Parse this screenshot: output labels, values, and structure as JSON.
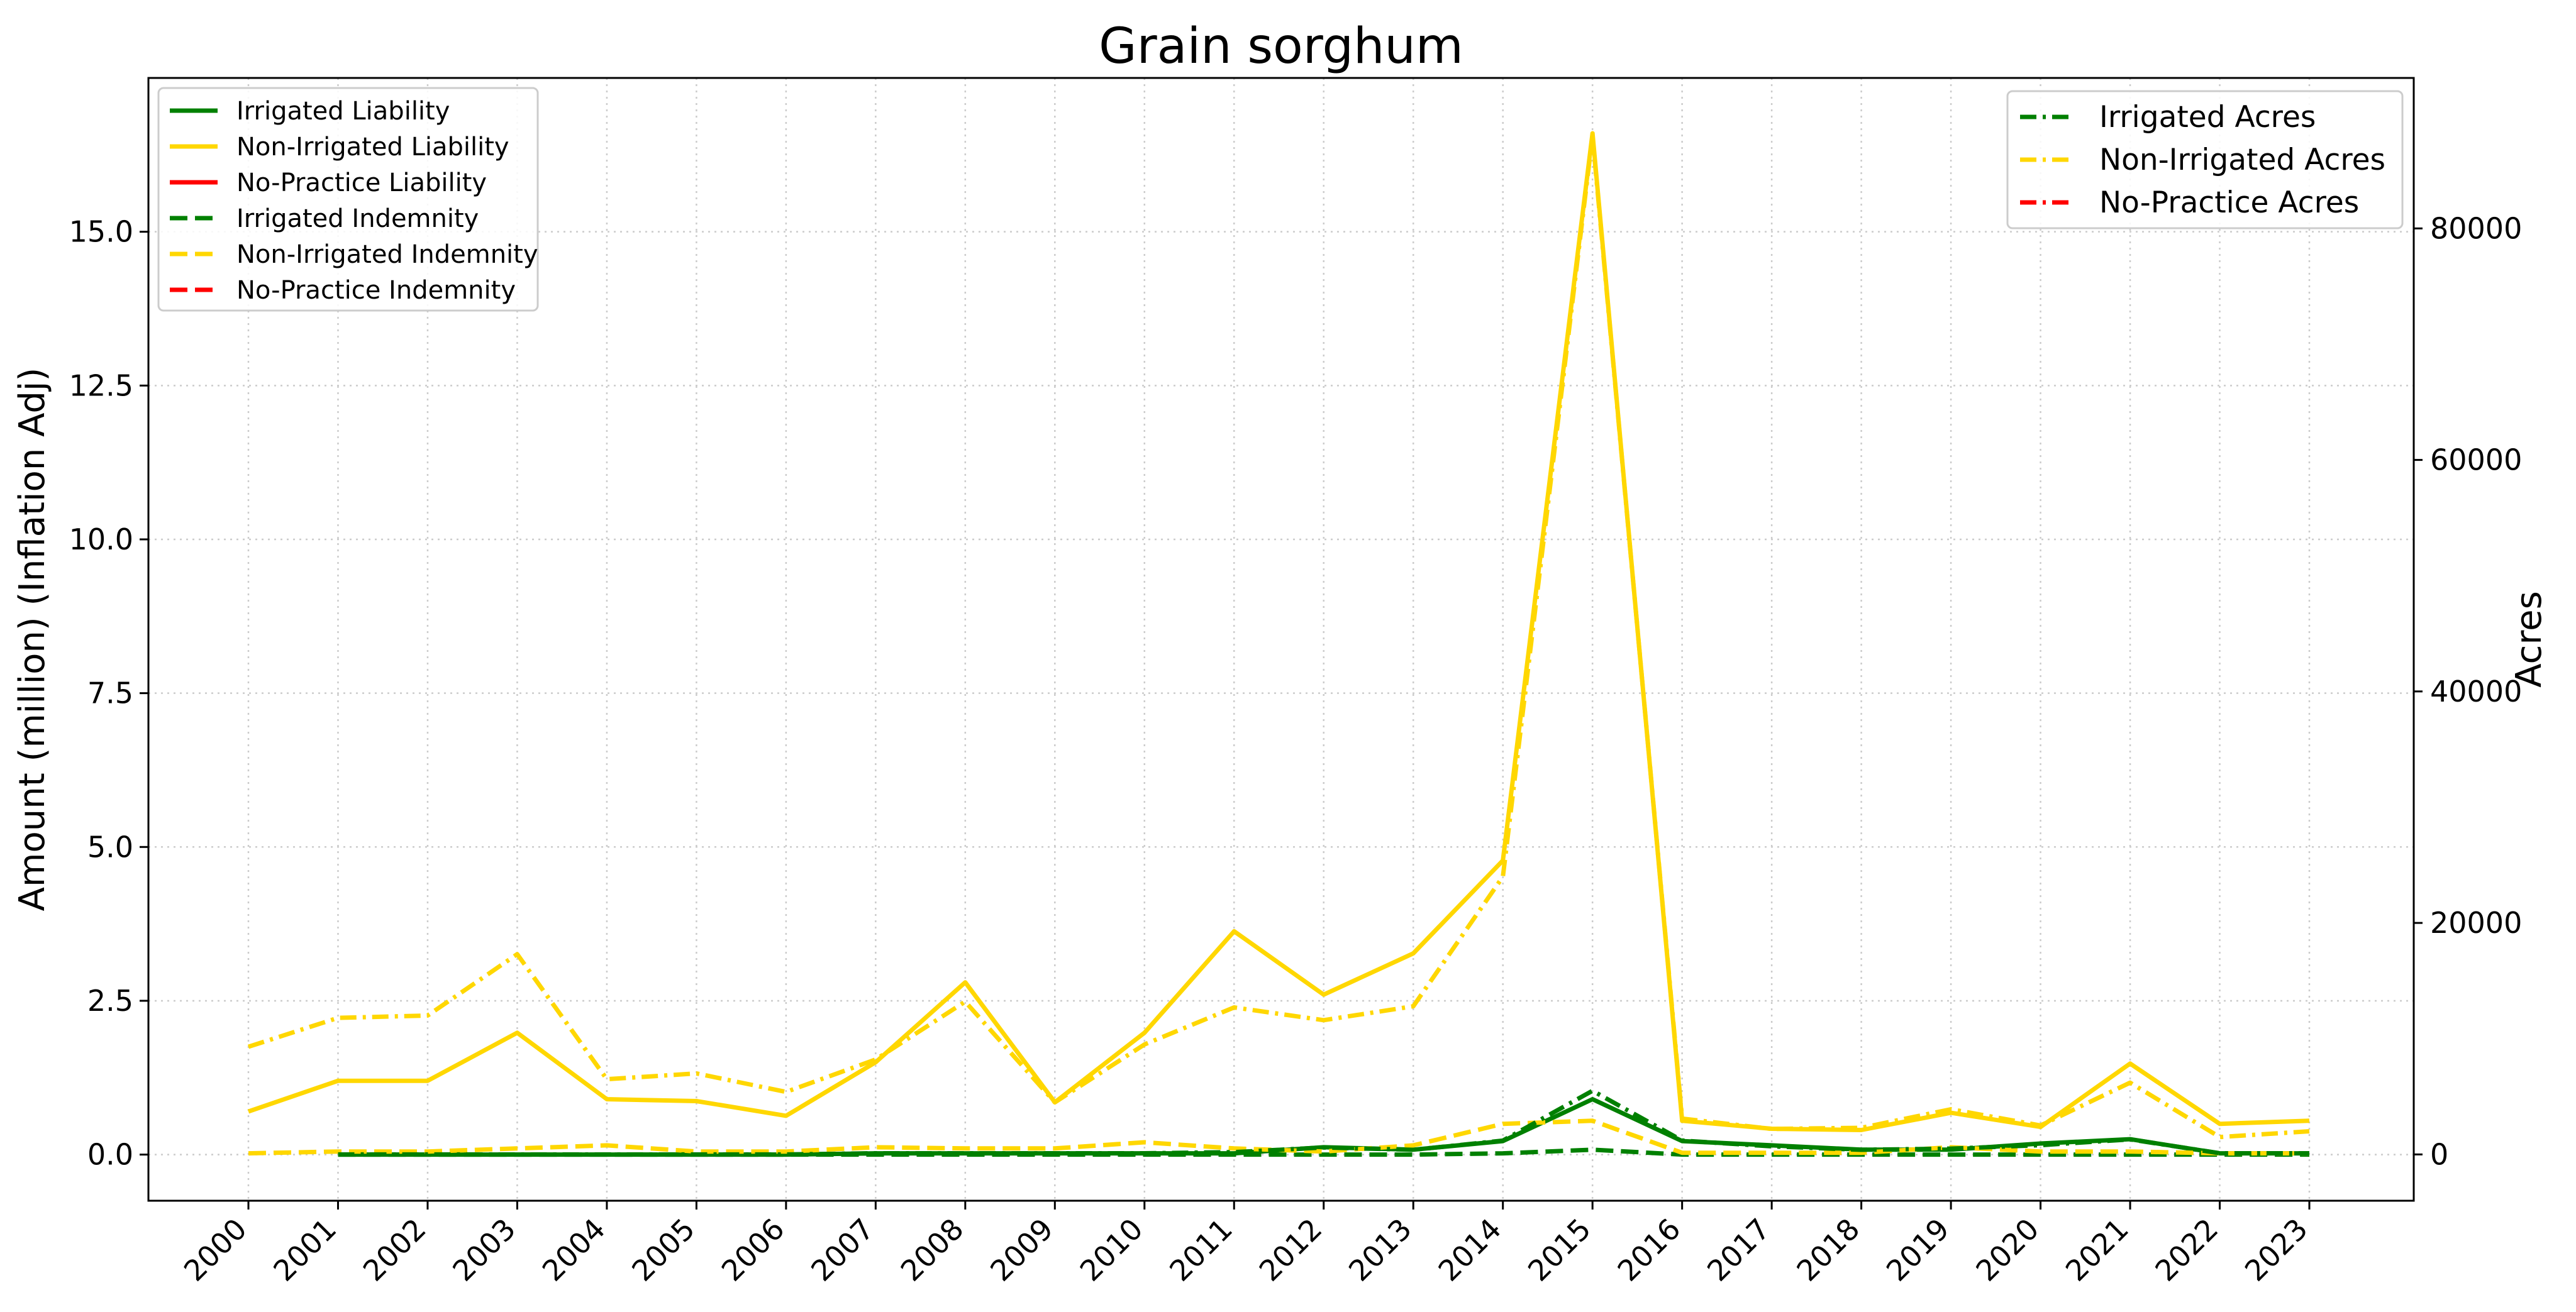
{
  "chart_data": {
    "type": "line",
    "title": "Grain sorghum",
    "ylabel_left": "Amount (million) (Inflation Adj)",
    "ylabel_right": "Acres",
    "xlabel": "",
    "x": [
      2000,
      2001,
      2002,
      2003,
      2004,
      2005,
      2006,
      2007,
      2008,
      2009,
      2010,
      2011,
      2012,
      2013,
      2014,
      2015,
      2016,
      2017,
      2018,
      2019,
      2020,
      2021,
      2022,
      2023
    ],
    "ylim_left": [
      -0.75,
      17.5
    ],
    "ylim_right": [
      -4000,
      93000
    ],
    "yticks_left": [
      "0.0",
      "2.5",
      "5.0",
      "7.5",
      "10.0",
      "12.5",
      "15.0"
    ],
    "yticks_right": [
      "0",
      "20000",
      "40000",
      "60000",
      "80000"
    ],
    "grid": true,
    "legend_left_position": "upper-left",
    "legend_right_position": "upper-right",
    "series_left": [
      {
        "name": "Irrigated Liability",
        "color": "#008000",
        "style": "solid",
        "x": [
          2001,
          2002,
          2003,
          2004,
          2005,
          2006,
          2007,
          2008,
          2009,
          2010,
          2011,
          2012,
          2013,
          2014,
          2015,
          2016,
          2017,
          2018,
          2019,
          2020,
          2021,
          2022,
          2023
        ],
        "values": [
          0.0,
          0.0,
          0.0,
          0.0,
          0.0,
          0.0,
          0.02,
          0.02,
          0.02,
          0.02,
          0.02,
          0.12,
          0.08,
          0.22,
          0.9,
          0.22,
          0.15,
          0.08,
          0.08,
          0.18,
          0.25,
          0.02,
          0.02
        ]
      },
      {
        "name": "Non-Irrigated Liability",
        "color": "#FFD700",
        "style": "solid",
        "x": [
          2000,
          2001,
          2002,
          2003,
          2004,
          2005,
          2006,
          2007,
          2008,
          2009,
          2010,
          2011,
          2012,
          2013,
          2014,
          2015,
          2016,
          2017,
          2018,
          2019,
          2020,
          2021,
          2022,
          2023
        ],
        "values": [
          0.7,
          1.2,
          1.2,
          1.98,
          0.9,
          0.87,
          0.63,
          1.5,
          2.8,
          0.85,
          1.98,
          3.63,
          2.6,
          3.27,
          4.78,
          16.6,
          0.55,
          0.42,
          0.4,
          0.68,
          0.45,
          1.48,
          0.5,
          0.55
        ]
      },
      {
        "name": "No-Practice Liability",
        "color": "#FF0000",
        "style": "solid",
        "x": [],
        "values": []
      },
      {
        "name": "Irrigated Indemnity",
        "color": "#008000",
        "style": "dashed",
        "x": [
          2001,
          2002,
          2003,
          2004,
          2005,
          2006,
          2007,
          2008,
          2009,
          2010,
          2011,
          2012,
          2013,
          2014,
          2015,
          2016,
          2017,
          2018,
          2019,
          2020,
          2021,
          2022,
          2023
        ],
        "values": [
          0.0,
          0.0,
          0.0,
          0.0,
          0.0,
          0.0,
          0.0,
          0.0,
          0.0,
          0.0,
          0.0,
          0.0,
          0.0,
          0.02,
          0.08,
          0.0,
          0.0,
          0.0,
          0.0,
          0.0,
          0.0,
          0.0,
          0.0
        ]
      },
      {
        "name": "Non-Irrigated Indemnity",
        "color": "#FFD700",
        "style": "dashed",
        "x": [
          2000,
          2001,
          2002,
          2003,
          2004,
          2005,
          2006,
          2007,
          2008,
          2009,
          2010,
          2011,
          2012,
          2013,
          2014,
          2015,
          2016,
          2017,
          2018,
          2019,
          2020,
          2021,
          2022,
          2023
        ],
        "values": [
          0.02,
          0.05,
          0.05,
          0.1,
          0.15,
          0.05,
          0.05,
          0.12,
          0.1,
          0.1,
          0.2,
          0.1,
          0.05,
          0.15,
          0.5,
          0.55,
          0.03,
          0.03,
          0.03,
          0.12,
          0.05,
          0.05,
          0.02,
          0.02
        ]
      },
      {
        "name": "No-Practice Indemnity",
        "color": "#FF0000",
        "style": "dashed",
        "x": [],
        "values": []
      }
    ],
    "series_right": [
      {
        "name": "Irrigated Acres",
        "color": "#008000",
        "style": "dashdot",
        "x": [
          2001,
          2002,
          2003,
          2004,
          2005,
          2006,
          2007,
          2008,
          2009,
          2010,
          2011,
          2012,
          2013,
          2014,
          2015,
          2016,
          2017,
          2018,
          2019,
          2020,
          2021,
          2022,
          2023
        ],
        "values": [
          0,
          0,
          0,
          0,
          0,
          0,
          100,
          100,
          100,
          100,
          200,
          600,
          400,
          1200,
          5500,
          1200,
          700,
          400,
          500,
          800,
          1300,
          100,
          100
        ]
      },
      {
        "name": "Non-Irrigated Acres",
        "color": "#FFD700",
        "style": "dashdot",
        "x": [
          2000,
          2001,
          2002,
          2003,
          2004,
          2005,
          2006,
          2007,
          2008,
          2009,
          2010,
          2011,
          2012,
          2013,
          2014,
          2015,
          2016,
          2017,
          2018,
          2019,
          2020,
          2021,
          2022,
          2023
        ],
        "values": [
          9300,
          11800,
          12000,
          17300,
          6500,
          7000,
          5400,
          8200,
          13200,
          4500,
          9500,
          12700,
          11600,
          12800,
          24000,
          88000,
          3100,
          2200,
          2300,
          3900,
          2500,
          6200,
          1500,
          2000
        ]
      },
      {
        "name": "No-Practice Acres",
        "color": "#FF0000",
        "style": "dashdot",
        "x": [],
        "values": []
      }
    ]
  }
}
